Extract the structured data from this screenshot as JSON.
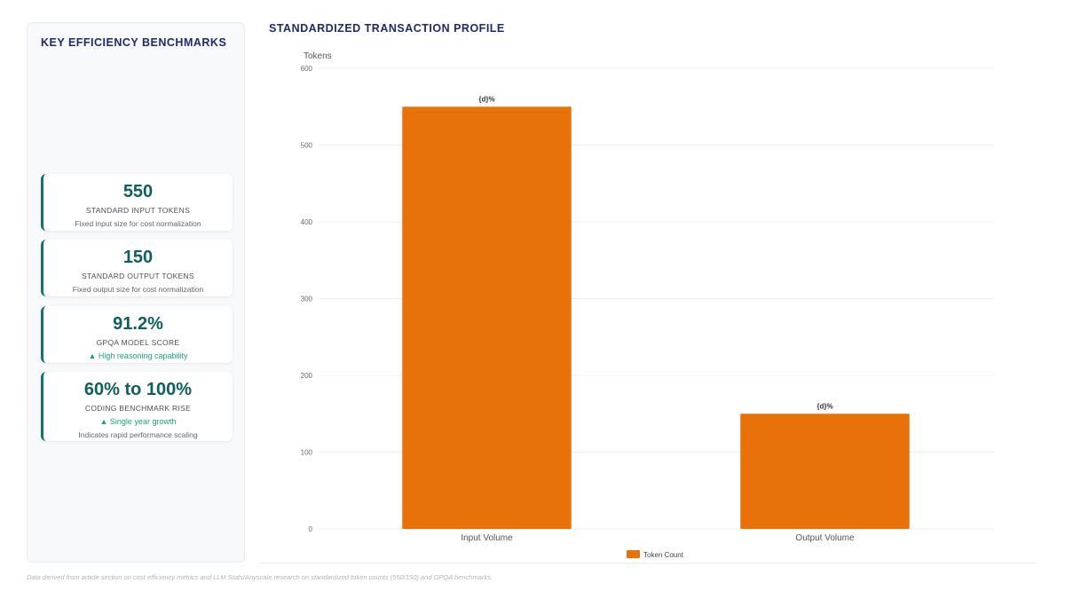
{
  "left_panel": {
    "title": "KEY EFFICIENCY BENCHMARKS",
    "cards": [
      {
        "value": "550",
        "label": "STANDARD INPUT TOKENS",
        "note": "Fixed input size for cost normalization"
      },
      {
        "value": "150",
        "label": "STANDARD OUTPUT TOKENS",
        "note": "Fixed output size for cost normalization"
      },
      {
        "value": "91.2%",
        "label": "GPQA MODEL SCORE",
        "trend": "▲ High reasoning capability"
      },
      {
        "value": "60% to 100%",
        "label": "CODING BENCHMARK RISE",
        "trend": "▲ Single year growth",
        "note": "Indicates rapid performance scaling"
      }
    ]
  },
  "chart_title": "STANDARDIZED TRANSACTION PROFILE",
  "footnote": "Data derived from article section on cost efficiency metrics and LLM Stats/Anyscale research on standardized token counts (550/150) and GPQA benchmarks.",
  "chart_data": {
    "type": "bar",
    "categories": [
      "Input Volume",
      "Output Volume"
    ],
    "series": [
      {
        "name": "Token Count",
        "values": [
          550,
          150
        ],
        "color": "#e8710a"
      }
    ],
    "data_labels": [
      "{d}%",
      "{d}%"
    ],
    "ylabel": "Tokens",
    "ylim": [
      0,
      600
    ],
    "yticks": [
      0,
      100,
      200,
      300,
      400,
      500,
      600
    ],
    "grid": true,
    "legend": "bottom"
  }
}
